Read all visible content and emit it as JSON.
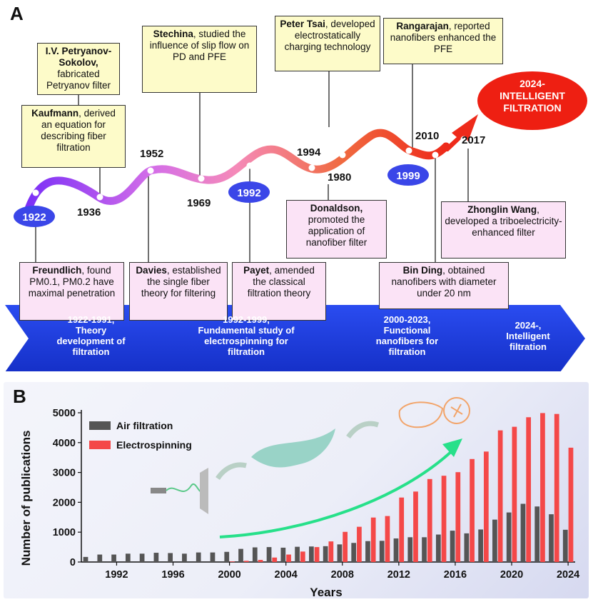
{
  "panel_a": {
    "letter": "A",
    "years": {
      "y1922": "1922",
      "y1936": "1936",
      "y1952": "1952",
      "y1969": "1969",
      "y1992": "1992",
      "y1994": "1994",
      "y1980": "1980",
      "y1999": "1999",
      "y2010": "2010",
      "y2017": "2017"
    },
    "final_oval": "2024-\nINTELLIGENT\nFILTRATION",
    "boxes": {
      "petryanov_name": "I.V. Petryanov-Sokolov,",
      "petryanov_text": " fabricated Petryanov filter",
      "kaufmann_name": "Kaufmann",
      "kaufmann_text": ", derived an equation for describing fiber filtration",
      "stechina_name": "Stechina",
      "stechina_text": ", studied the influence of slip flow on PD and PFE",
      "tsai_name": "Peter Tsai",
      "tsai_text": ", developed electrostatically charging technology",
      "rangarajan_name": "Rangarajan",
      "rangarajan_text": ", reported nanofibers enhanced the PFE",
      "freundlich_name": "Freundlich",
      "freundlich_text": ", found PM0.1, PM0.2 have maximal penetration",
      "davies_name": "Davies",
      "davies_text": ", established the single fiber theory for filtering",
      "payet_name": "Payet",
      "payet_text": ", amended the classical filtration theory",
      "donaldson_name": "Donaldson,",
      "donaldson_text": " promoted the application of nanofiber filter",
      "binding_name": "Bin Ding",
      "binding_text": ", obtained nanofibers with diameter under 20 nm",
      "wang_name": "Zhonglin Wang",
      "wang_text": ", developed a triboelectricity-enhanced filter"
    },
    "stages": [
      "1922-1991,\nTheory\ndevelopment of\nfiltration",
      "1992-1999,\nFundamental study of\nelectrospinning for\nfiltration",
      "2000-2023,\nFunctional\nnanofibers for\nfiltration",
      "2024-,\nIntelligent\nfiltration"
    ]
  },
  "panel_b": {
    "letter": "B"
  },
  "chart_data": {
    "type": "bar",
    "xlabel": "Years",
    "ylabel": "Number of publications",
    "ylim": [
      0,
      5000
    ],
    "yticks": [
      "0",
      "1000",
      "2000",
      "3000",
      "4000",
      "5000"
    ],
    "xticks": [
      "1992",
      "1996",
      "2000",
      "2004",
      "2008",
      "2012",
      "2016",
      "2020",
      "2024"
    ],
    "grid": false,
    "legend_position": "top-left",
    "categories": [
      1990,
      1991,
      1992,
      1993,
      1994,
      1995,
      1996,
      1997,
      1998,
      1999,
      2000,
      2001,
      2002,
      2003,
      2004,
      2005,
      2006,
      2007,
      2008,
      2009,
      2010,
      2011,
      2012,
      2013,
      2014,
      2015,
      2016,
      2017,
      2018,
      2019,
      2020,
      2021,
      2022,
      2023,
      2024
    ],
    "series": [
      {
        "name": "Air filtration",
        "color": "#555555",
        "values": [
          170,
          250,
          250,
          280,
          280,
          310,
          300,
          280,
          320,
          320,
          340,
          440,
          490,
          500,
          480,
          510,
          520,
          530,
          590,
          640,
          700,
          710,
          790,
          830,
          830,
          920,
          1050,
          960,
          1090,
          1420,
          1660,
          1950,
          1860,
          1600,
          1080
        ]
      },
      {
        "name": "Electrospinning",
        "color": "#f44848",
        "values": [
          0,
          0,
          0,
          0,
          0,
          0,
          0,
          0,
          0,
          0,
          20,
          40,
          70,
          150,
          250,
          350,
          500,
          690,
          1010,
          1180,
          1490,
          1540,
          2160,
          2360,
          2780,
          2890,
          3010,
          3450,
          3700,
          4410,
          4530,
          4850,
          4990,
          4960,
          3830
        ]
      }
    ]
  }
}
